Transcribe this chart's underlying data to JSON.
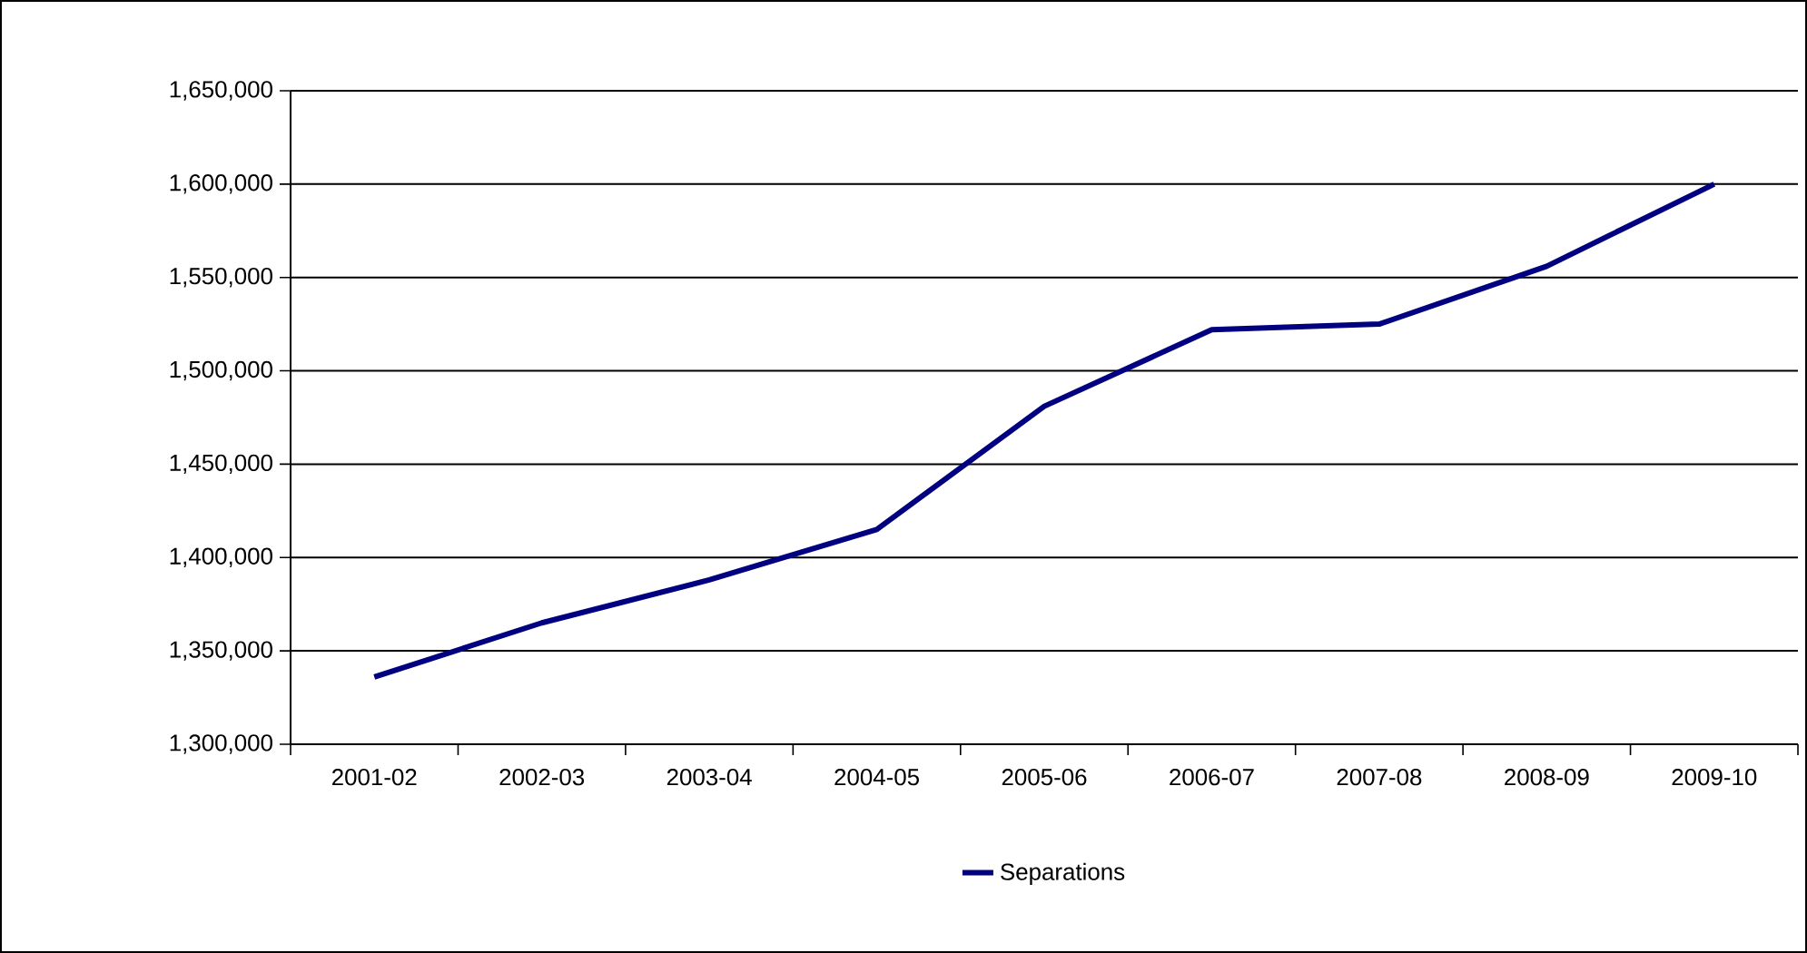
{
  "chart_data": {
    "type": "line",
    "categories": [
      "2001-02",
      "2002-03",
      "2003-04",
      "2004-05",
      "2005-06",
      "2006-07",
      "2007-08",
      "2008-09",
      "2009-10"
    ],
    "series": [
      {
        "name": "Separations",
        "color": "#000080",
        "values": [
          1336000,
          1365000,
          1388000,
          1415000,
          1481000,
          1522000,
          1525000,
          1556000,
          1600000
        ]
      }
    ],
    "ylim": [
      1300000,
      1650000
    ],
    "yticks": [
      {
        "value": 1300000,
        "label": "1,300,000"
      },
      {
        "value": 1350000,
        "label": "1,350,000"
      },
      {
        "value": 1400000,
        "label": "1,400,000"
      },
      {
        "value": 1450000,
        "label": "1,450,000"
      },
      {
        "value": 1500000,
        "label": "1,500,000"
      },
      {
        "value": 1550000,
        "label": "1,550,000"
      },
      {
        "value": 1600000,
        "label": "1,600,000"
      },
      {
        "value": 1650000,
        "label": "1,650,000"
      }
    ],
    "grid": "y",
    "legend": "bottom",
    "marker": "none",
    "line_style": "solid"
  }
}
